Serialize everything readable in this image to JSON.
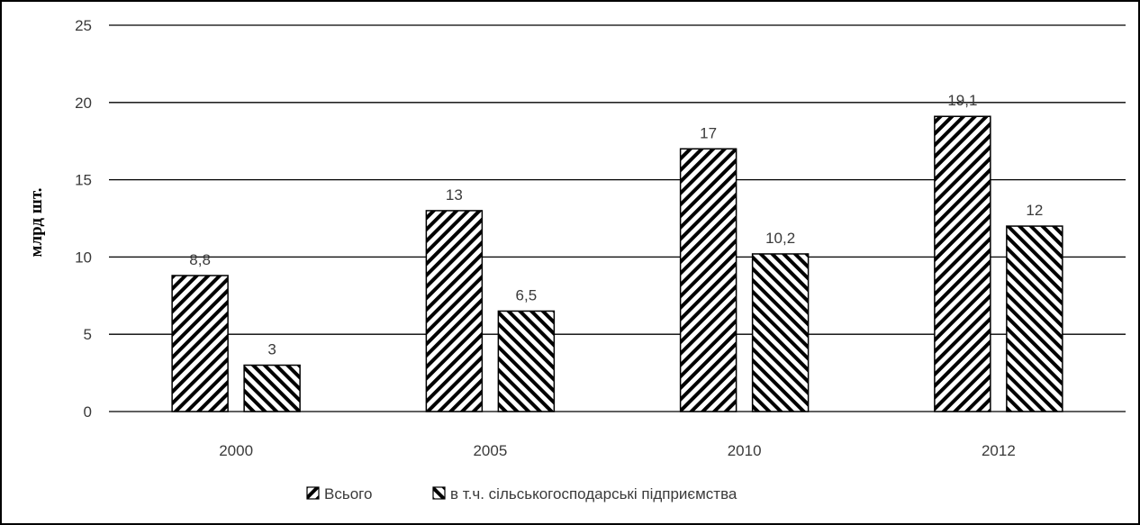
{
  "chart_data": {
    "type": "bar",
    "categories": [
      "2000",
      "2005",
      "2010",
      "2012"
    ],
    "series": [
      {
        "name": "Всього",
        "values": [
          8.8,
          13,
          17,
          19.1
        ],
        "value_labels": [
          "8,8",
          "13",
          "17",
          "19,1"
        ],
        "pattern": "diagonal-forward"
      },
      {
        "name": "в т.ч. сільськогосподарські підприємства",
        "values": [
          3,
          6.5,
          10.2,
          12
        ],
        "value_labels": [
          "3",
          "6,5",
          "10,2",
          "12"
        ],
        "pattern": "diagonal-backward"
      }
    ],
    "title": "",
    "xlabel": "",
    "ylabel": "млрд шт.",
    "ylim": [
      0,
      25
    ],
    "yticks": [
      0,
      5,
      10,
      15,
      20,
      25
    ],
    "grid": true,
    "legend_position": "bottom",
    "colors": {
      "bar_fill": "#000000",
      "bar_background": "#ffffff",
      "grid": "#000000"
    }
  }
}
